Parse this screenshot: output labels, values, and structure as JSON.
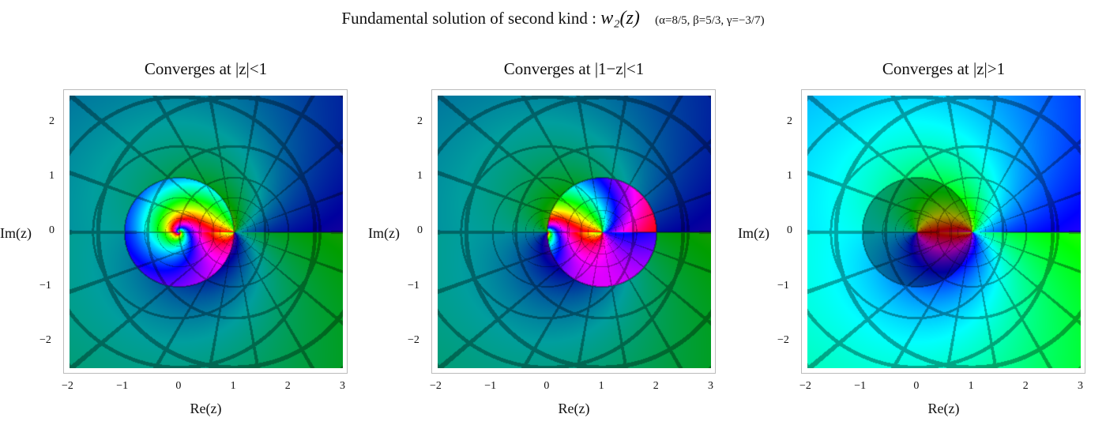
{
  "title": {
    "text": "Fundamental solution of second kind  :",
    "function": "w₂(z)",
    "params": "(α=8/5, β=5/3, γ=−3/7)"
  },
  "chart_data": [
    {
      "type": "heatmap",
      "subtype": "domain-coloring",
      "title": "Converges at |z|<1",
      "region": "|z|<1",
      "xlabel": "Re(z)",
      "ylabel": "Im(z)",
      "xlim": [
        -2,
        3
      ],
      "ylim": [
        -2.5,
        2.5
      ],
      "xticks": [
        "−2",
        "−1",
        "0",
        "1",
        "2",
        "3"
      ],
      "yticks": [
        "2",
        "1",
        "0",
        "−1",
        "−2"
      ],
      "grid": false
    },
    {
      "type": "heatmap",
      "subtype": "domain-coloring",
      "title": "Converges at |1−z|<1",
      "region": "|1-z|<1",
      "xlabel": "Re(z)",
      "ylabel": "Im(z)",
      "xlim": [
        -2,
        3
      ],
      "ylim": [
        -2.5,
        2.5
      ],
      "xticks": [
        "−2",
        "−1",
        "0",
        "1",
        "2",
        "3"
      ],
      "yticks": [
        "2",
        "1",
        "0",
        "−1",
        "−2"
      ],
      "grid": false
    },
    {
      "type": "heatmap",
      "subtype": "domain-coloring",
      "title": "Converges at |z|>1",
      "region": "|z|>1",
      "xlabel": "Re(z)",
      "ylabel": "Im(z)",
      "xlim": [
        -2,
        3
      ],
      "ylim": [
        -2.5,
        2.5
      ],
      "xticks": [
        "−2",
        "−1",
        "0",
        "1",
        "2",
        "3"
      ],
      "yticks": [
        "2",
        "1",
        "0",
        "−1",
        "−2"
      ],
      "grid": false
    }
  ]
}
